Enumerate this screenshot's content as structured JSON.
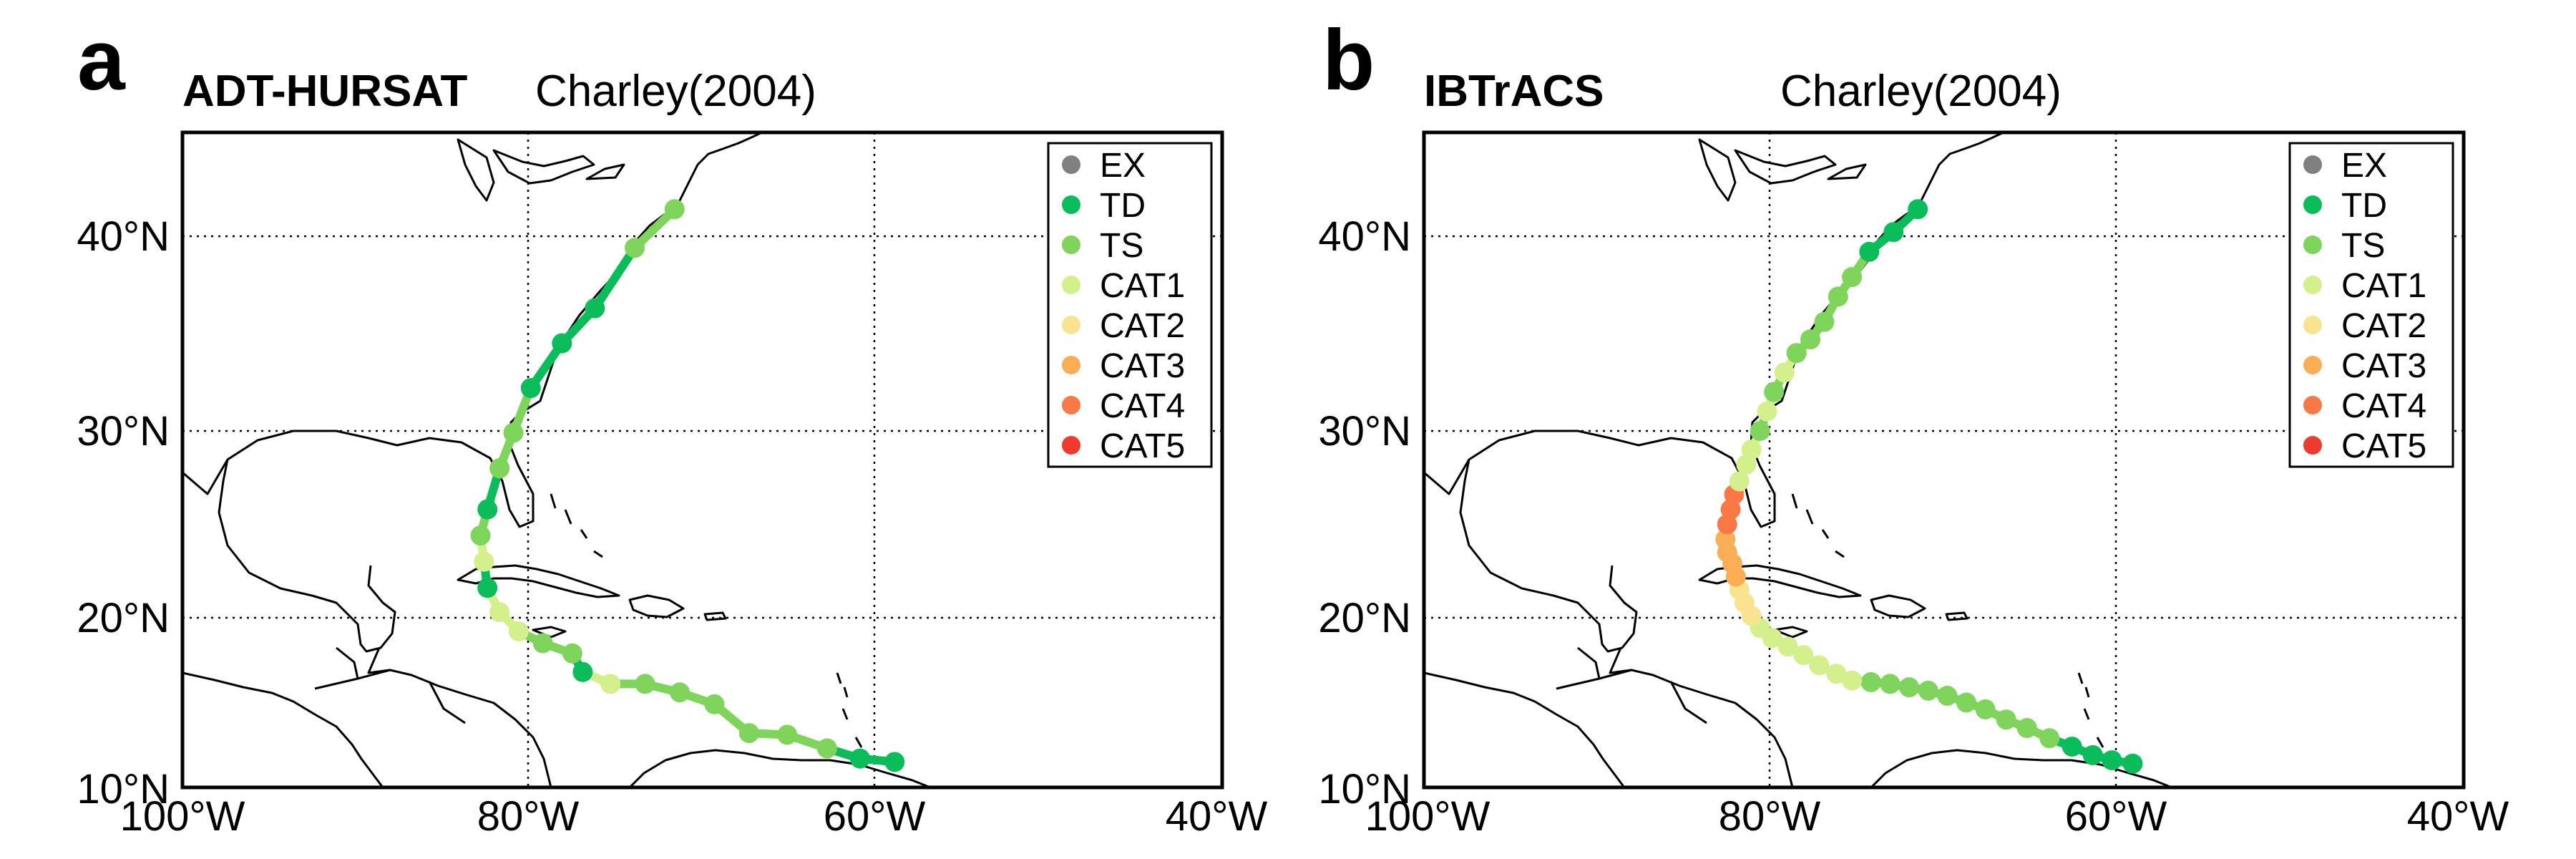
{
  "figure": {
    "xaxis": {
      "range": [
        -100,
        -40
      ],
      "ticks": [
        -100,
        -80,
        -60,
        -40
      ],
      "tick_labels": [
        "100°W",
        "80°W",
        "60°W",
        "40°W"
      ]
    },
    "yaxis": {
      "range": [
        10,
        45
      ],
      "ticks": [
        10,
        20,
        30,
        40
      ],
      "tick_labels": [
        "10°N",
        "20°N",
        "30°N",
        "40°N"
      ]
    },
    "gridlines": {
      "lon": [
        -80,
        -60
      ],
      "lat": [
        20,
        30,
        40
      ],
      "style": "dotted"
    },
    "legend": {
      "placement": "top-right",
      "entries": [
        {
          "label": "EX",
          "color": "#808080"
        },
        {
          "label": "TD",
          "color": "#0bbd5a"
        },
        {
          "label": "TS",
          "color": "#7fd45b"
        },
        {
          "label": "CAT1",
          "color": "#d4f08c"
        },
        {
          "label": "CAT2",
          "color": "#f8e38e"
        },
        {
          "label": "CAT3",
          "color": "#f9ad55"
        },
        {
          "label": "CAT4",
          "color": "#f87945"
        },
        {
          "label": "CAT5",
          "color": "#ee3b2e"
        }
      ]
    }
  },
  "panels": [
    {
      "letter": "a",
      "source": "ADT-HURSAT",
      "storm": "Charley(2004)",
      "track": [
        {
          "lon": -58.9,
          "lat": 11.5,
          "cat": "TD"
        },
        {
          "lon": -60.9,
          "lat": 11.7,
          "cat": "TD"
        },
        {
          "lon": -62.8,
          "lat": 12.3,
          "cat": "TS"
        },
        {
          "lon": -65.1,
          "lat": 13.1,
          "cat": "TS"
        },
        {
          "lon": -67.3,
          "lat": 13.2,
          "cat": "TS"
        },
        {
          "lon": -69.3,
          "lat": 14.9,
          "cat": "TS"
        },
        {
          "lon": -71.3,
          "lat": 15.6,
          "cat": "TS"
        },
        {
          "lon": -73.3,
          "lat": 16.1,
          "cat": "TS"
        },
        {
          "lon": -75.3,
          "lat": 16.1,
          "cat": "CAT1"
        },
        {
          "lon": -76.9,
          "lat": 16.8,
          "cat": "TD"
        },
        {
          "lon": -77.5,
          "lat": 17.9,
          "cat": "TS"
        },
        {
          "lon": -79.2,
          "lat": 18.5,
          "cat": "TS"
        },
        {
          "lon": -80.6,
          "lat": 19.2,
          "cat": "CAT1"
        },
        {
          "lon": -81.7,
          "lat": 20.3,
          "cat": "CAT1"
        },
        {
          "lon": -82.4,
          "lat": 21.6,
          "cat": "TD"
        },
        {
          "lon": -82.6,
          "lat": 23.0,
          "cat": "CAT1"
        },
        {
          "lon": -82.8,
          "lat": 24.4,
          "cat": "TS"
        },
        {
          "lon": -82.4,
          "lat": 25.8,
          "cat": "TD"
        },
        {
          "lon": -81.7,
          "lat": 28.0,
          "cat": "TS"
        },
        {
          "lon": -80.9,
          "lat": 29.9,
          "cat": "TS"
        },
        {
          "lon": -79.9,
          "lat": 32.2,
          "cat": "TD"
        },
        {
          "lon": -78.1,
          "lat": 34.5,
          "cat": "TD"
        },
        {
          "lon": -76.2,
          "lat": 36.3,
          "cat": "TD"
        },
        {
          "lon": -73.9,
          "lat": 39.4,
          "cat": "TS"
        },
        {
          "lon": -71.6,
          "lat": 41.3,
          "cat": "TS"
        }
      ]
    },
    {
      "letter": "b",
      "source": "IBTrACS",
      "storm": "Charley(2004)",
      "track": [
        {
          "lon": -59.1,
          "lat": 11.4,
          "cat": "TD"
        },
        {
          "lon": -60.3,
          "lat": 11.6,
          "cat": "TD"
        },
        {
          "lon": -61.4,
          "lat": 11.9,
          "cat": "TD"
        },
        {
          "lon": -62.6,
          "lat": 12.4,
          "cat": "TD"
        },
        {
          "lon": -63.9,
          "lat": 12.9,
          "cat": "TS"
        },
        {
          "lon": -65.2,
          "lat": 13.5,
          "cat": "TS"
        },
        {
          "lon": -66.4,
          "lat": 14.0,
          "cat": "TS"
        },
        {
          "lon": -67.6,
          "lat": 14.6,
          "cat": "TS"
        },
        {
          "lon": -68.7,
          "lat": 15.0,
          "cat": "TS"
        },
        {
          "lon": -69.8,
          "lat": 15.4,
          "cat": "TS"
        },
        {
          "lon": -70.9,
          "lat": 15.7,
          "cat": "TS"
        },
        {
          "lon": -72.0,
          "lat": 15.9,
          "cat": "TS"
        },
        {
          "lon": -73.1,
          "lat": 16.1,
          "cat": "TS"
        },
        {
          "lon": -74.2,
          "lat": 16.2,
          "cat": "TS"
        },
        {
          "lon": -75.3,
          "lat": 16.3,
          "cat": "CAT1"
        },
        {
          "lon": -76.2,
          "lat": 16.7,
          "cat": "CAT1"
        },
        {
          "lon": -77.2,
          "lat": 17.2,
          "cat": "CAT1"
        },
        {
          "lon": -78.1,
          "lat": 17.8,
          "cat": "CAT1"
        },
        {
          "lon": -79.0,
          "lat": 18.3,
          "cat": "CAT1"
        },
        {
          "lon": -79.9,
          "lat": 18.8,
          "cat": "CAT1"
        },
        {
          "lon": -80.6,
          "lat": 19.4,
          "cat": "CAT1"
        },
        {
          "lon": -81.1,
          "lat": 20.1,
          "cat": "CAT2"
        },
        {
          "lon": -81.5,
          "lat": 20.8,
          "cat": "CAT2"
        },
        {
          "lon": -81.8,
          "lat": 21.5,
          "cat": "CAT2"
        },
        {
          "lon": -82.0,
          "lat": 22.2,
          "cat": "CAT3"
        },
        {
          "lon": -82.2,
          "lat": 22.9,
          "cat": "CAT3"
        },
        {
          "lon": -82.5,
          "lat": 23.5,
          "cat": "CAT3"
        },
        {
          "lon": -82.6,
          "lat": 24.2,
          "cat": "CAT3"
        },
        {
          "lon": -82.5,
          "lat": 25.0,
          "cat": "CAT4"
        },
        {
          "lon": -82.3,
          "lat": 25.8,
          "cat": "CAT4"
        },
        {
          "lon": -82.1,
          "lat": 26.6,
          "cat": "CAT4"
        },
        {
          "lon": -81.8,
          "lat": 27.3,
          "cat": "CAT1"
        },
        {
          "lon": -81.4,
          "lat": 28.2,
          "cat": "CAT1"
        },
        {
          "lon": -81.1,
          "lat": 29.0,
          "cat": "CAT1"
        },
        {
          "lon": -80.6,
          "lat": 30.0,
          "cat": "TS"
        },
        {
          "lon": -80.2,
          "lat": 31.0,
          "cat": "CAT1"
        },
        {
          "lon": -79.8,
          "lat": 32.0,
          "cat": "TS"
        },
        {
          "lon": -79.2,
          "lat": 33.0,
          "cat": "CAT1"
        },
        {
          "lon": -78.5,
          "lat": 34.0,
          "cat": "TS"
        },
        {
          "lon": -77.7,
          "lat": 34.7,
          "cat": "TS"
        },
        {
          "lon": -76.9,
          "lat": 35.6,
          "cat": "TS"
        },
        {
          "lon": -76.1,
          "lat": 36.9,
          "cat": "TS"
        },
        {
          "lon": -75.3,
          "lat": 37.9,
          "cat": "TS"
        },
        {
          "lon": -74.3,
          "lat": 39.2,
          "cat": "TD"
        },
        {
          "lon": -72.9,
          "lat": 40.2,
          "cat": "TD"
        },
        {
          "lon": -71.5,
          "lat": 41.3,
          "cat": "TD"
        }
      ]
    }
  ]
}
